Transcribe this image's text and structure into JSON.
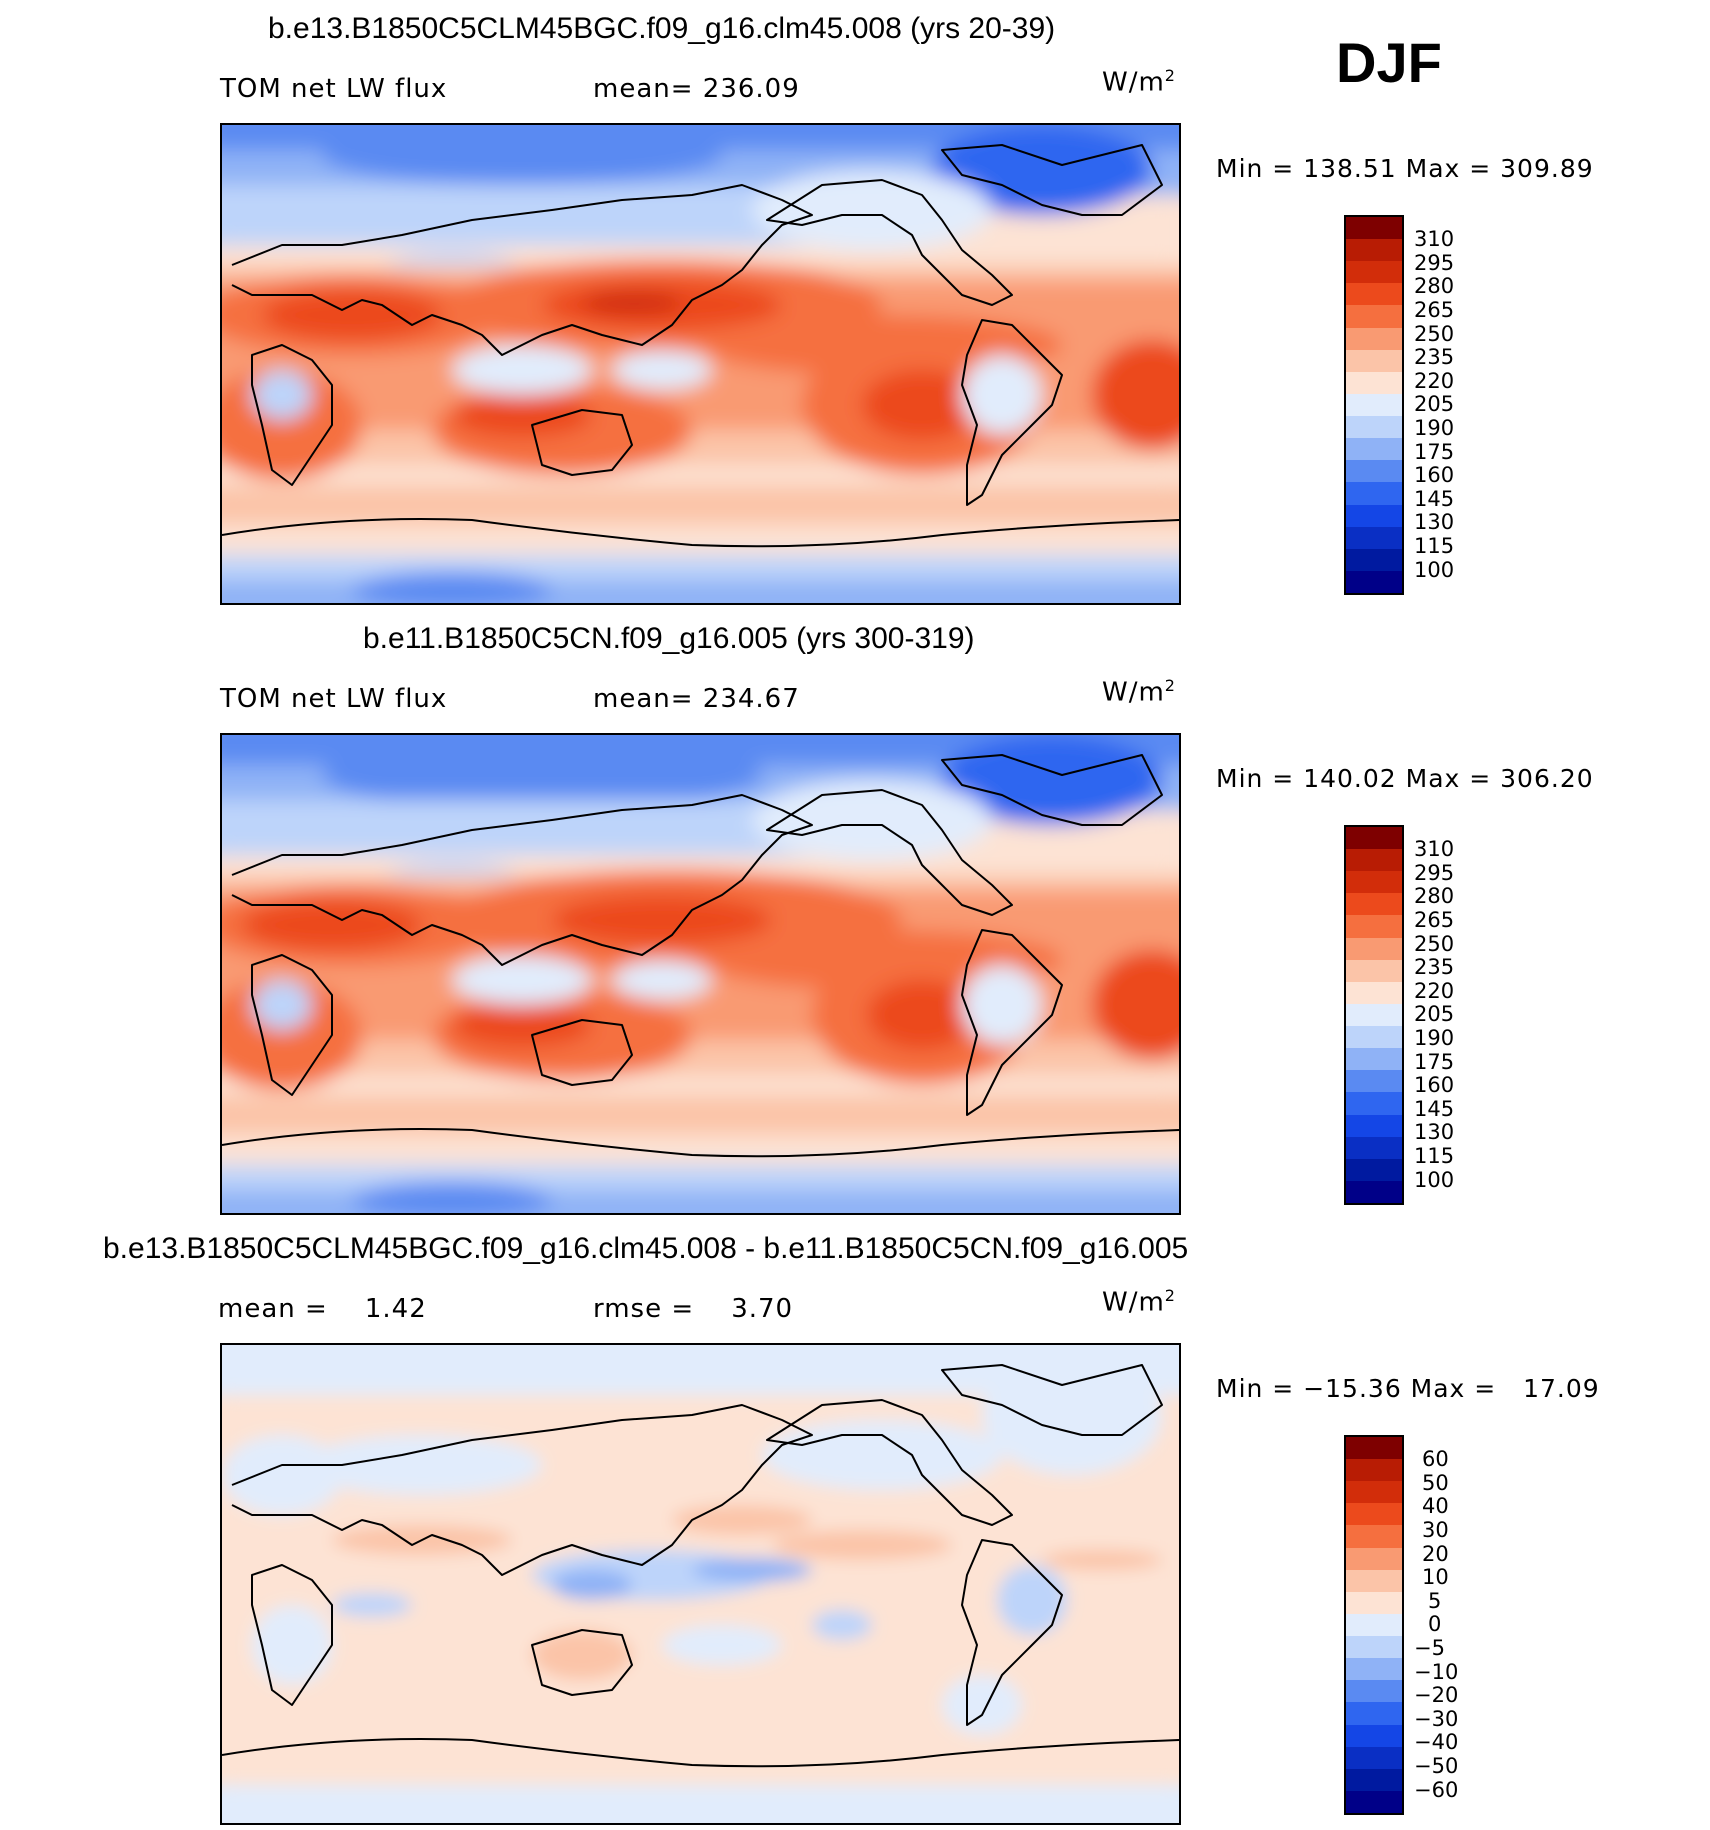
{
  "season": "DJF",
  "panels": [
    {
      "title": "b.e13.B1850C5CLM45BGC.f09_g16.clm45.008 (yrs 20-39)",
      "left_label": "TOM net LW flux",
      "center_label": "mean= 236.09",
      "units": "W/m",
      "units_sup": "2",
      "minmax": "Min = 138.51 Max = 309.89",
      "colorbar_labels": [
        "310",
        "295",
        "280",
        "265",
        "250",
        "235",
        "220",
        "205",
        "190",
        "175",
        "160",
        "145",
        "130",
        "115",
        "100"
      ]
    },
    {
      "title": "b.e11.B1850C5CN.f09_g16.005 (yrs 300-319)",
      "left_label": "TOM net LW flux",
      "center_label": "mean= 234.67",
      "units": "W/m",
      "units_sup": "2",
      "minmax": "Min = 140.02 Max = 306.20",
      "colorbar_labels": [
        "310",
        "295",
        "280",
        "265",
        "250",
        "235",
        "220",
        "205",
        "190",
        "175",
        "160",
        "145",
        "130",
        "115",
        "100"
      ]
    },
    {
      "title": "b.e13.B1850C5CLM45BGC.f09_g16.clm45.008 - b.e11.B1850C5CN.f09_g16.005",
      "left_label": "mean =    1.42",
      "center_label": "rmse =    3.70",
      "units": "W/m",
      "units_sup": "2",
      "minmax": "Min = −15.36 Max =   17.09",
      "colorbar_labels": [
        "60",
        "50",
        "40",
        "30",
        "20",
        "10",
        "5",
        "0",
        "−5",
        "−10",
        "−20",
        "−30",
        "−40",
        "−50",
        "−60"
      ]
    }
  ],
  "colors": {
    "palette": [
      "#000088",
      "#001aa0",
      "#0a2fc4",
      "#1446e6",
      "#2f66f0",
      "#5a8af2",
      "#8fb2f6",
      "#bdd4fa",
      "#e1ecfc",
      "#fde3d4",
      "#fbc4a8",
      "#f99a72",
      "#f56f3f",
      "#ec4a1c",
      "#d22d0a",
      "#b81c04",
      "#7e0000"
    ]
  }
}
